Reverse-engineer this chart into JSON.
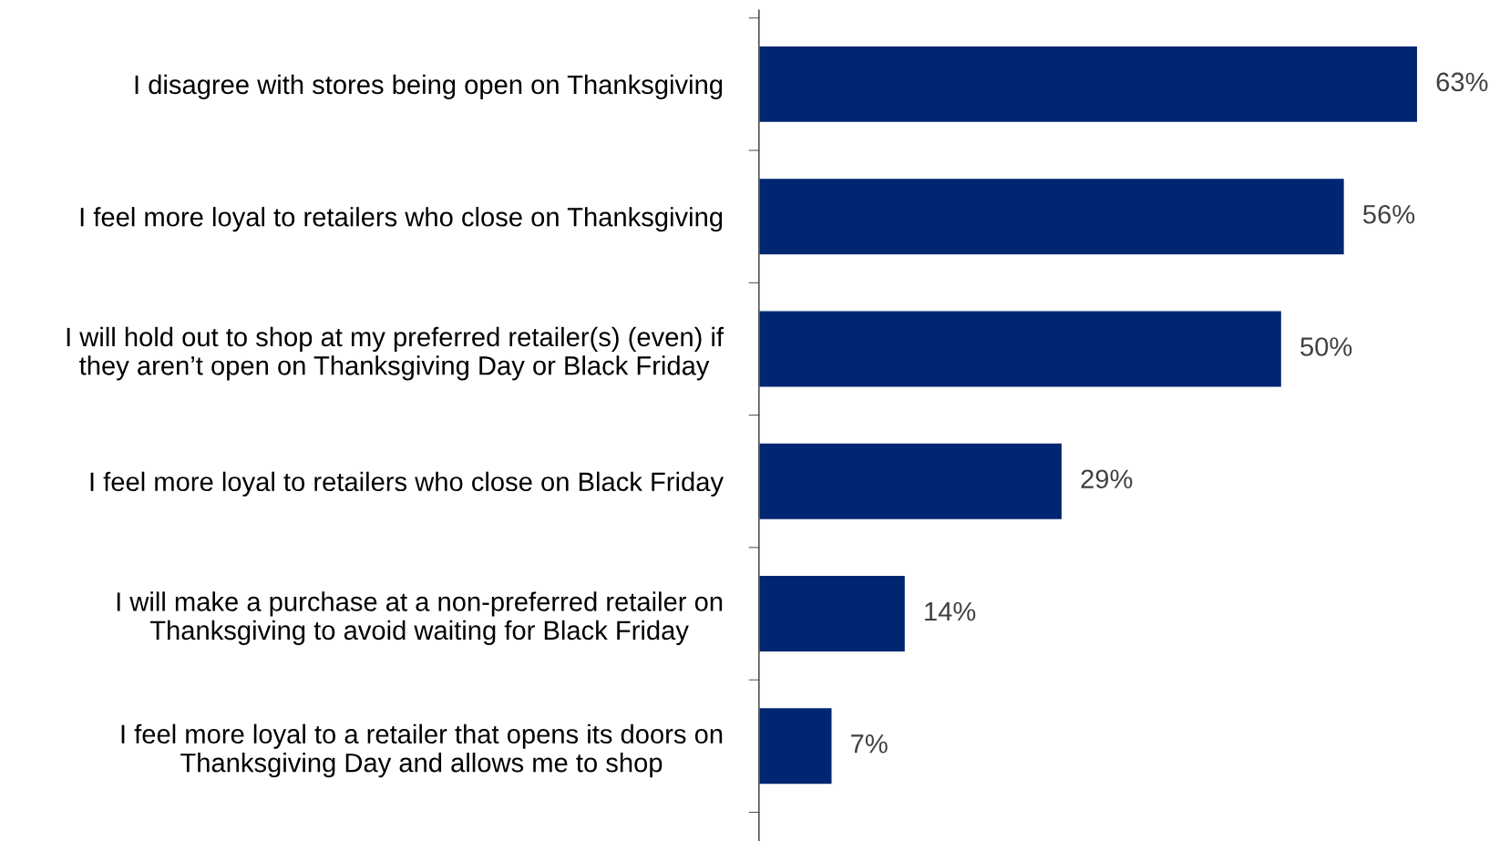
{
  "chart_data": {
    "type": "bar",
    "orientation": "horizontal",
    "categories": [
      "I disagree with stores being open on Thanksgiving",
      "I feel more loyal to retailers who close on Thanksgiving",
      "I will hold out to shop at my preferred retailer(s) (even) if\nthey aren’t open on Thanksgiving Day or Black Friday",
      "I feel more loyal to retailers who close on Black Friday",
      "I will make a purchase at a non-preferred retailer on\nThanksgiving to avoid waiting for Black Friday",
      "I feel more loyal to a retailer that opens its doors on\nThanksgiving Day and allows me to shop"
    ],
    "values": [
      63,
      56,
      50,
      29,
      14,
      7
    ],
    "value_labels": [
      "63%",
      "56%",
      "50%",
      "29%",
      "14%",
      "7%"
    ],
    "color": "#002672",
    "tick_labels": "y"
  }
}
